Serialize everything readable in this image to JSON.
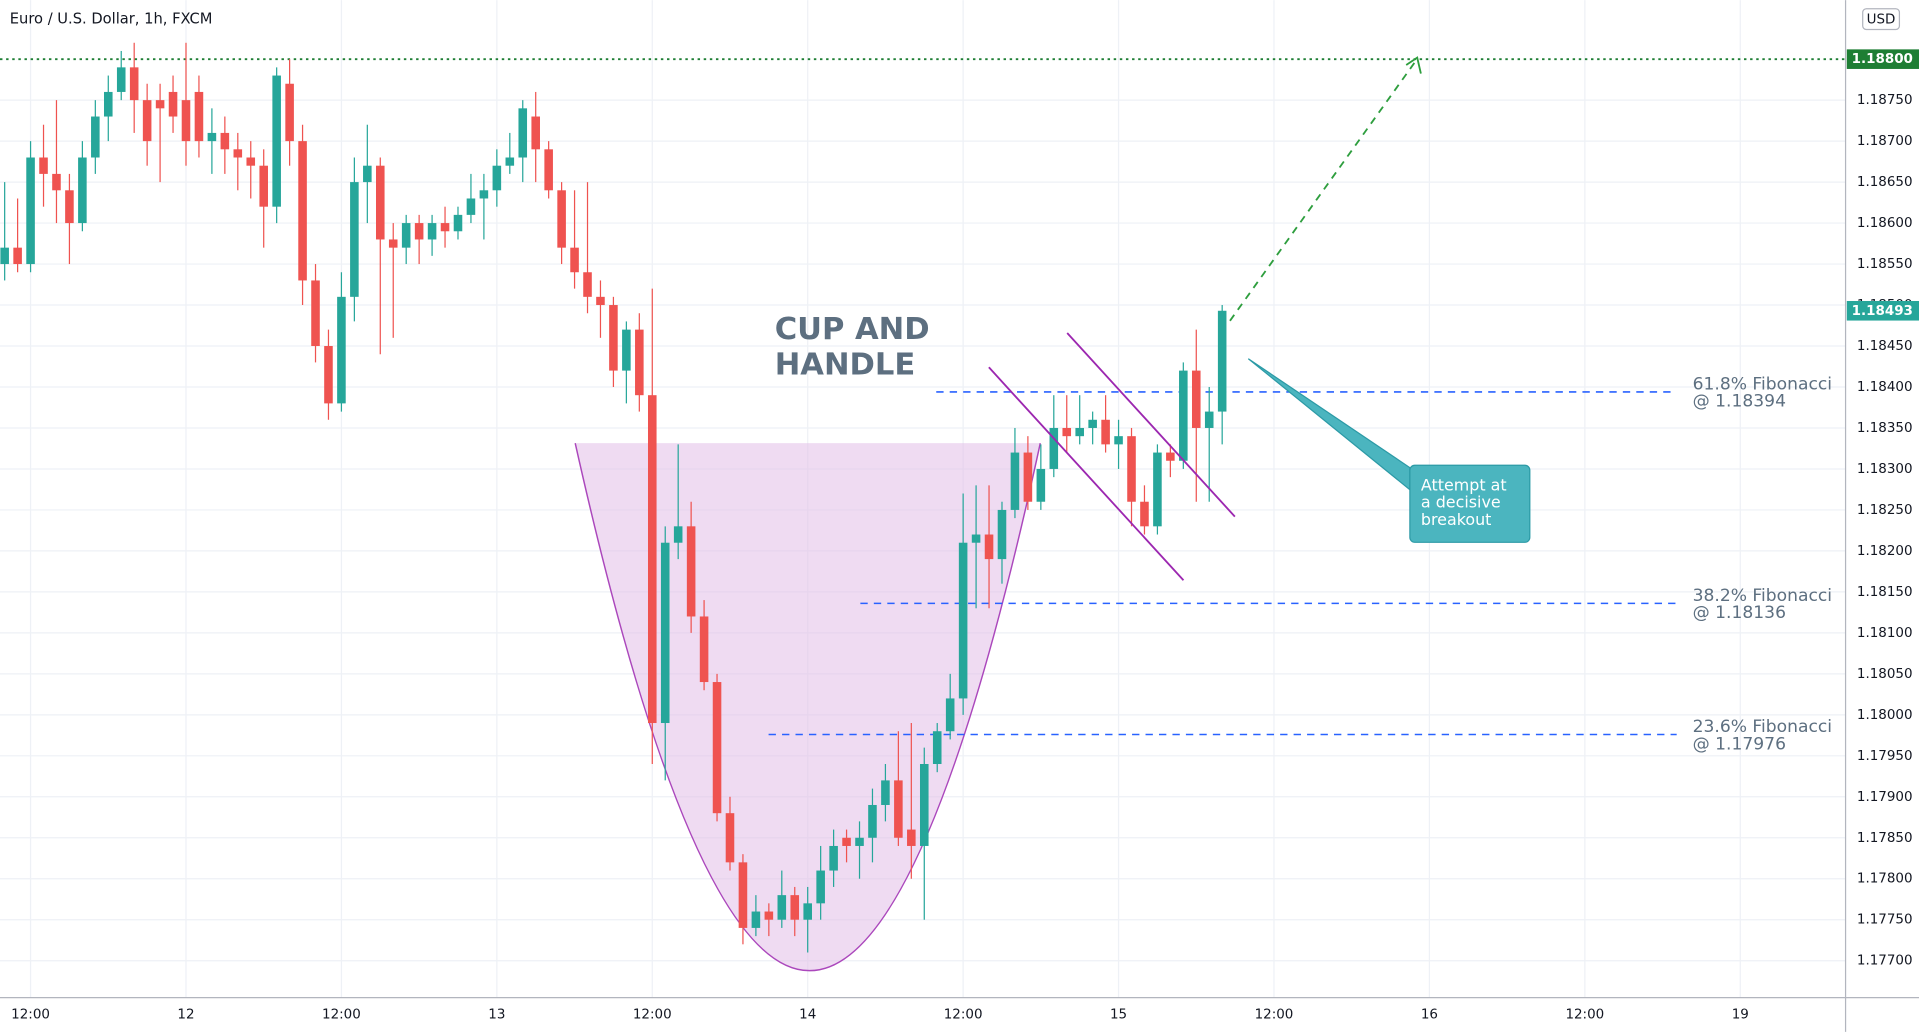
{
  "chart_data": {
    "type": "candlestick",
    "title": "Euro / U.S. Dollar, 1h, FXCM",
    "currency": "USD",
    "x": [
      10,
      11,
      12,
      13,
      14,
      15,
      16,
      17,
      18,
      19,
      20,
      21,
      22,
      23,
      24,
      25,
      26,
      27,
      28,
      29,
      30,
      31,
      32,
      33,
      34,
      35,
      36,
      37,
      38,
      39,
      40,
      41,
      42,
      43,
      44,
      45,
      46,
      47,
      48,
      49,
      50,
      51,
      52,
      53,
      54,
      55,
      56,
      57,
      58,
      59,
      60,
      61,
      62,
      63,
      64,
      65,
      66,
      67,
      68,
      69,
      70,
      71,
      72,
      73,
      74,
      75,
      76,
      77,
      78,
      79,
      80,
      81,
      82,
      83,
      84,
      85,
      86,
      87,
      88,
      89,
      90,
      91,
      92,
      93,
      94,
      95,
      96,
      97,
      98,
      99,
      100,
      101,
      102,
      103,
      104
    ],
    "open": [
      1.1855,
      1.1857,
      1.1855,
      1.1868,
      1.1866,
      1.1864,
      1.186,
      1.1868,
      1.1873,
      1.1876,
      1.1879,
      1.1875,
      1.1875,
      1.1876,
      1.1875,
      1.1876,
      1.187,
      1.1871,
      1.1869,
      1.1868,
      1.1867,
      1.1862,
      1.1877,
      1.187,
      1.1853,
      1.1845,
      1.1838,
      1.1851,
      1.1865,
      1.1867,
      1.1858,
      1.1857,
      1.186,
      1.1858,
      1.186,
      1.1859,
      1.1861,
      1.1863,
      1.1864,
      1.1867,
      1.1868,
      1.1873,
      1.1869,
      1.1864,
      1.1857,
      1.1854,
      1.1851,
      1.185,
      1.1842,
      1.1847,
      1.1839,
      1.1799,
      1.1821,
      1.1823,
      1.1812,
      1.1804,
      1.1788,
      1.1782,
      1.1774,
      1.1776,
      1.1775,
      1.1778,
      1.1775,
      1.1777,
      1.1781,
      1.1785,
      1.1784,
      1.1785,
      1.1789,
      1.1792,
      1.1786,
      1.1784,
      1.1794,
      1.1798,
      1.1802,
      1.1821,
      1.1822,
      1.1819,
      1.1825,
      1.1832,
      1.1826,
      1.183,
      1.1835,
      1.1834,
      1.1835,
      1.1836,
      1.1833,
      1.1834,
      1.1826,
      1.1823,
      1.1832,
      1.1831,
      1.1842,
      1.1835,
      1.1837
    ],
    "high": [
      1.1865,
      1.1863,
      1.187,
      1.1872,
      1.1875,
      1.1866,
      1.187,
      1.1875,
      1.1878,
      1.1881,
      1.1882,
      1.1877,
      1.1877,
      1.1878,
      1.1882,
      1.1878,
      1.1874,
      1.1873,
      1.1871,
      1.187,
      1.1869,
      1.1879,
      1.188,
      1.1872,
      1.1855,
      1.1847,
      1.1854,
      1.1868,
      1.1872,
      1.1868,
      1.186,
      1.1861,
      1.1861,
      1.1861,
      1.1862,
      1.1862,
      1.1866,
      1.1866,
      1.1869,
      1.1871,
      1.1875,
      1.1876,
      1.187,
      1.1865,
      1.1864,
      1.1865,
      1.1853,
      1.1851,
      1.1848,
      1.1849,
      1.1852,
      1.1823,
      1.1833,
      1.1826,
      1.1814,
      1.1805,
      1.179,
      1.1783,
      1.1778,
      1.1777,
      1.1781,
      1.1779,
      1.1779,
      1.1784,
      1.1786,
      1.1786,
      1.1787,
      1.1791,
      1.1794,
      1.1798,
      1.1799,
      1.1796,
      1.1799,
      1.1805,
      1.1827,
      1.1828,
      1.1828,
      1.1826,
      1.1835,
      1.1834,
      1.1833,
      1.1839,
      1.1839,
      1.1839,
      1.1837,
      1.1839,
      1.1836,
      1.1835,
      1.1828,
      1.1833,
      1.1833,
      1.1843,
      1.1847,
      1.184,
      1.185
    ],
    "low": [
      1.1853,
      1.1854,
      1.1854,
      1.1862,
      1.186,
      1.1855,
      1.1859,
      1.1866,
      1.187,
      1.1875,
      1.1871,
      1.1867,
      1.1865,
      1.1871,
      1.1867,
      1.1868,
      1.1866,
      1.1866,
      1.1864,
      1.1863,
      1.1857,
      1.186,
      1.1867,
      1.185,
      1.1843,
      1.1836,
      1.1837,
      1.1848,
      1.186,
      1.1844,
      1.1846,
      1.1855,
      1.1855,
      1.1856,
      1.1857,
      1.1858,
      1.186,
      1.1858,
      1.1862,
      1.1866,
      1.1865,
      1.1865,
      1.1863,
      1.1855,
      1.1852,
      1.1849,
      1.1846,
      1.184,
      1.1838,
      1.1837,
      1.1794,
      1.1792,
      1.1819,
      1.181,
      1.1803,
      1.1787,
      1.1781,
      1.1772,
      1.1773,
      1.1773,
      1.1774,
      1.1773,
      1.1771,
      1.1775,
      1.1779,
      1.1782,
      1.178,
      1.1782,
      1.1787,
      1.1784,
      1.178,
      1.1775,
      1.1793,
      1.1797,
      1.18,
      1.1813,
      1.1813,
      1.1816,
      1.1824,
      1.1825,
      1.1825,
      1.1829,
      1.1832,
      1.1833,
      1.1833,
      1.1832,
      1.183,
      1.1823,
      1.1822,
      1.1822,
      1.1829,
      1.183,
      1.1826,
      1.1826,
      1.1833
    ],
    "close": [
      1.1857,
      1.1855,
      1.1868,
      1.1866,
      1.1864,
      1.186,
      1.1868,
      1.1873,
      1.1876,
      1.1879,
      1.1875,
      1.187,
      1.1874,
      1.1873,
      1.187,
      1.187,
      1.1871,
      1.1869,
      1.1868,
      1.1867,
      1.1862,
      1.1878,
      1.187,
      1.1853,
      1.1845,
      1.1838,
      1.1851,
      1.1865,
      1.1867,
      1.1858,
      1.1857,
      1.186,
      1.1858,
      1.186,
      1.1859,
      1.1861,
      1.1863,
      1.1864,
      1.1867,
      1.1868,
      1.1874,
      1.1869,
      1.1864,
      1.1857,
      1.1854,
      1.1851,
      1.185,
      1.1842,
      1.1847,
      1.1839,
      1.1799,
      1.1821,
      1.1823,
      1.1812,
      1.1804,
      1.1788,
      1.1782,
      1.1774,
      1.1776,
      1.1775,
      1.1778,
      1.1775,
      1.1777,
      1.1781,
      1.1784,
      1.1784,
      1.1785,
      1.1789,
      1.1792,
      1.1785,
      1.1784,
      1.1794,
      1.1798,
      1.1802,
      1.1821,
      1.1822,
      1.1819,
      1.1825,
      1.1832,
      1.1826,
      1.183,
      1.1835,
      1.1834,
      1.1835,
      1.1836,
      1.1833,
      1.1834,
      1.1826,
      1.1823,
      1.1832,
      1.1831,
      1.1842,
      1.1835,
      1.1837,
      1.18493
    ],
    "up_color": "#26a69a",
    "down_color": "#ef5350",
    "xlim": [
      9.64,
      152.13
    ],
    "ylim": [
      1.17655,
      1.18872
    ],
    "xticks": [
      {
        "value": 12,
        "label": "12:00"
      },
      {
        "value": 24,
        "label": "12"
      },
      {
        "value": 36,
        "label": "12:00"
      },
      {
        "value": 48,
        "label": "13"
      },
      {
        "value": 60,
        "label": "12:00"
      },
      {
        "value": 72,
        "label": "14"
      },
      {
        "value": 84,
        "label": "12:00"
      },
      {
        "value": 96,
        "label": "15"
      },
      {
        "value": 108,
        "label": "12:00"
      },
      {
        "value": 120,
        "label": "16"
      },
      {
        "value": 132,
        "label": "12:00"
      },
      {
        "value": 144,
        "label": "19"
      }
    ],
    "yticks": [
      {
        "value": 1.177,
        "label": "1.17700"
      },
      {
        "value": 1.1775,
        "label": "1.17750"
      },
      {
        "value": 1.178,
        "label": "1.17800"
      },
      {
        "value": 1.1785,
        "label": "1.17850"
      },
      {
        "value": 1.179,
        "label": "1.17900"
      },
      {
        "value": 1.1795,
        "label": "1.17950"
      },
      {
        "value": 1.18,
        "label": "1.18000"
      },
      {
        "value": 1.1805,
        "label": "1.18050"
      },
      {
        "value": 1.181,
        "label": "1.18100"
      },
      {
        "value": 1.1815,
        "label": "1.18150"
      },
      {
        "value": 1.182,
        "label": "1.18200"
      },
      {
        "value": 1.1825,
        "label": "1.18250"
      },
      {
        "value": 1.183,
        "label": "1.18300"
      },
      {
        "value": 1.1835,
        "label": "1.18350"
      },
      {
        "value": 1.184,
        "label": "1.18400"
      },
      {
        "value": 1.1845,
        "label": "1.18450"
      },
      {
        "value": 1.185,
        "label": "1.18500"
      },
      {
        "value": 1.1855,
        "label": "1.18550"
      },
      {
        "value": 1.186,
        "label": "1.18600"
      },
      {
        "value": 1.1865,
        "label": "1.18650"
      },
      {
        "value": 1.187,
        "label": "1.18700"
      },
      {
        "value": 1.1875,
        "label": "1.18750"
      }
    ],
    "grid": true,
    "resistance": {
      "value": 1.188,
      "label": "1.18800",
      "color": "#1e7e34"
    },
    "last_price": {
      "value": 1.18493,
      "label": "1.18493",
      "color": "#26a69a"
    },
    "fibonacci": [
      {
        "name": "61.8% Fibonacci",
        "label": "@ 1.18394",
        "value": 1.18394
      },
      {
        "name": "38.2% Fibonacci",
        "label": "@ 1.18136",
        "value": 1.18136
      },
      {
        "name": "23.6% Fibonacci",
        "label": "@ 1.17976",
        "value": 1.17976
      }
    ],
    "pattern_label": [
      "CUP AND",
      "HANDLE"
    ],
    "callout": [
      "Attempt at",
      "a decisive",
      "breakout"
    ]
  }
}
